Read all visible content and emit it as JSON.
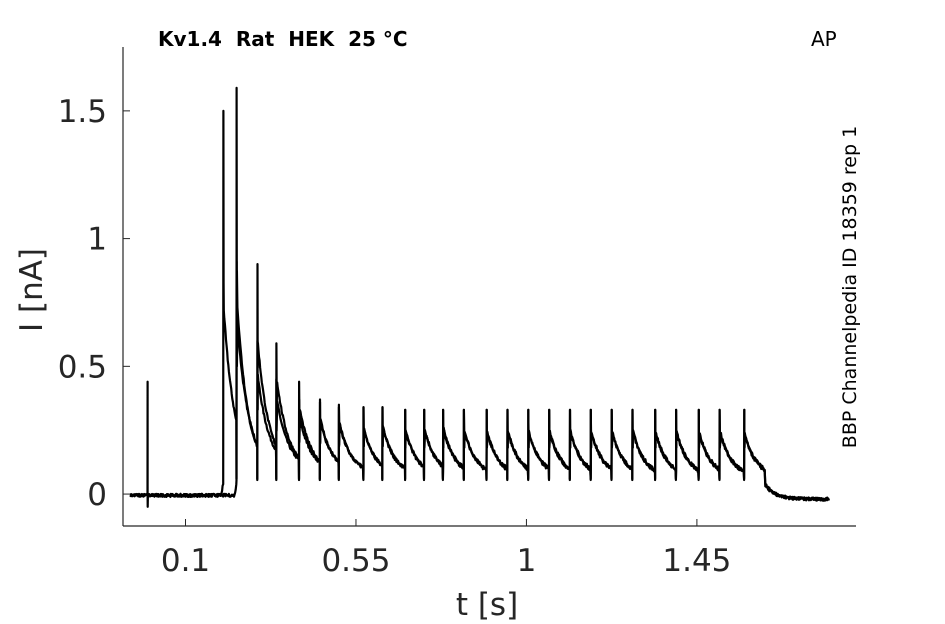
{
  "chart_data": {
    "type": "line",
    "title": "Kv1.4  Rat  HEK  25 °C",
    "corner_label": "AP",
    "side_label": "BBP Channelpedia ID 18359 rep 1",
    "xlabel": "t [s]",
    "ylabel": "I [nA]",
    "xlim": [
      -0.065,
      1.87
    ],
    "ylim": [
      -0.125,
      1.75
    ],
    "xticks": [
      0.1,
      0.55,
      1,
      1.45
    ],
    "xtick_labels": [
      "0.1",
      "0.55",
      "1",
      "1.45"
    ],
    "yticks": [
      0,
      0.5,
      1,
      1.5
    ],
    "ytick_labels": [
      "0",
      "0.5",
      "1",
      "1.5"
    ],
    "grid": false,
    "series": [
      {
        "spike_times": [
          0.2,
          0.235,
          0.29,
          0.34,
          0.4,
          0.455,
          0.505,
          0.57,
          0.62,
          0.68,
          0.73,
          0.78,
          0.835,
          0.895,
          0.95,
          1.005,
          1.06,
          1.115,
          1.17,
          1.225,
          1.28,
          1.34,
          1.395,
          1.455,
          1.51,
          1.575
        ],
        "spike_peaks": [
          1.5,
          0.91,
          0.6,
          0.45,
          0.37,
          0.36,
          0.34,
          0.34,
          0.34,
          0.33,
          0.33,
          0.33,
          0.33,
          0.33,
          0.33,
          0.33,
          0.33,
          0.33,
          0.33,
          0.33,
          0.33,
          0.33,
          0.33,
          0.33,
          0.33,
          0.33
        ],
        "baseline": 0.04
      },
      {
        "spike_times": [
          0.235,
          0.29,
          0.34,
          0.4,
          0.455,
          0.505,
          0.57,
          0.62,
          0.68,
          0.73,
          0.78,
          0.835,
          0.895,
          0.95,
          1.005,
          1.06,
          1.115,
          1.17,
          1.225,
          1.28,
          1.34,
          1.395,
          1.455,
          1.51,
          1.575
        ],
        "spike_peaks": [
          1.59,
          0.9,
          0.59,
          0.44,
          0.37,
          0.35,
          0.34,
          0.34,
          0.33,
          0.33,
          0.33,
          0.33,
          0.33,
          0.33,
          0.33,
          0.33,
          0.33,
          0.33,
          0.33,
          0.33,
          0.33,
          0.33,
          0.33,
          0.33,
          0.33
        ],
        "baseline": 0.035
      }
    ],
    "artifact": {
      "t": 0.0,
      "peak": 0.44,
      "trough": -0.05
    },
    "holding_end": 1.63,
    "trace_end": 1.8,
    "line_color": "#000000",
    "axis_color": "#262626"
  }
}
